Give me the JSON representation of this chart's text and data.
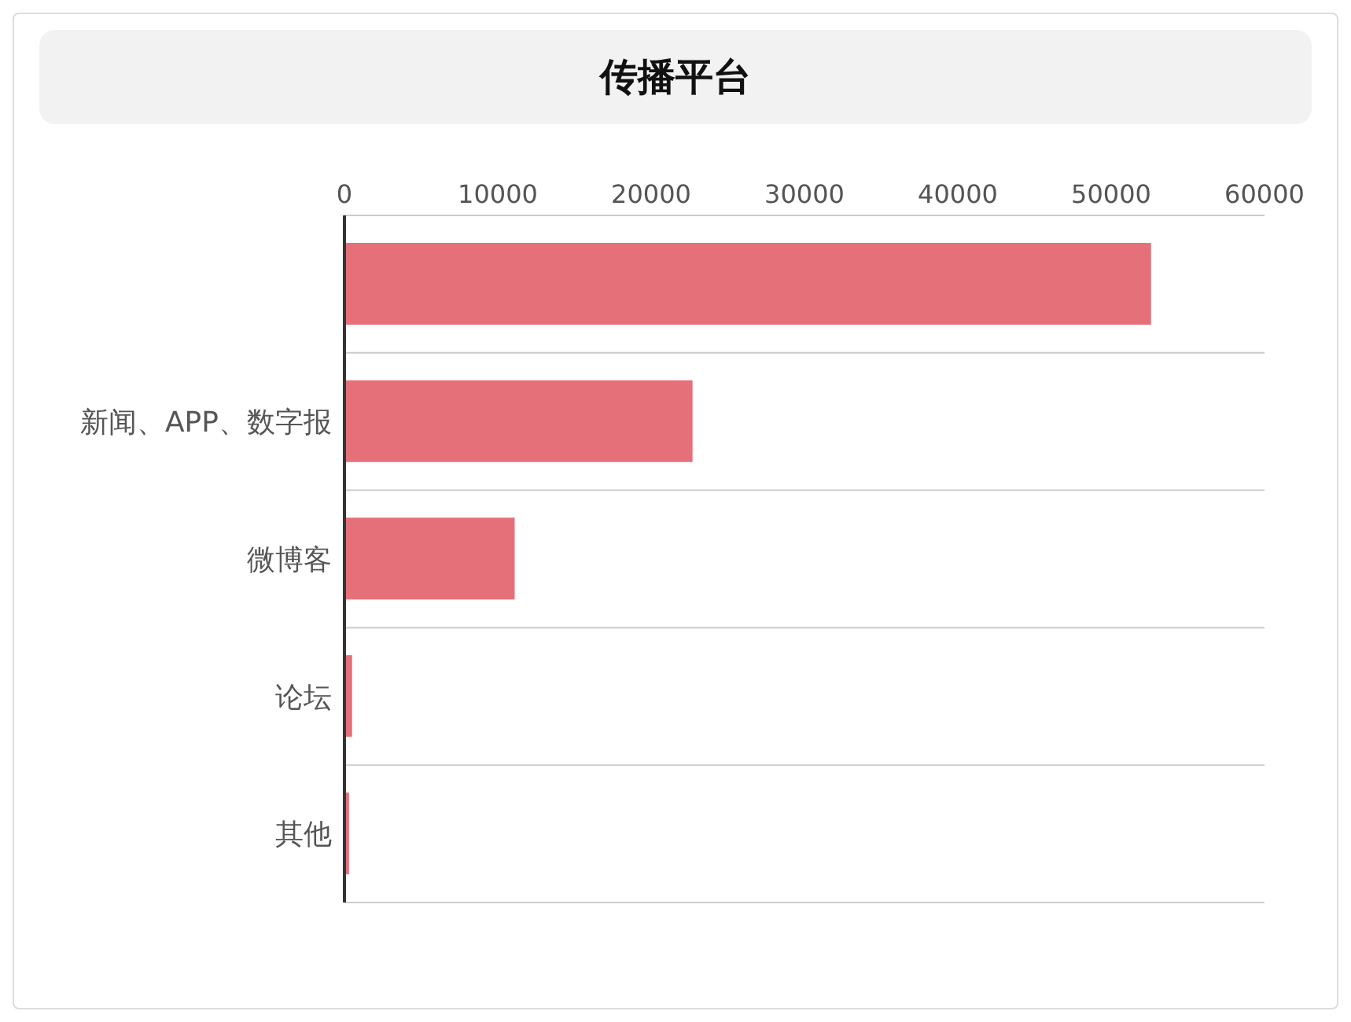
{
  "chart_data": {
    "type": "bar",
    "orientation": "horizontal",
    "title": "传播平台",
    "categories": [
      null,
      "新闻、APP、数字报",
      "微博客",
      "论坛",
      "其他"
    ],
    "values": [
      52600,
      22700,
      11100,
      500,
      300
    ],
    "color": "#e5707a",
    "xlim": [
      0,
      60000
    ],
    "xticks": [
      0,
      10000,
      20000,
      30000,
      40000,
      50000,
      60000
    ],
    "grid": "y"
  }
}
